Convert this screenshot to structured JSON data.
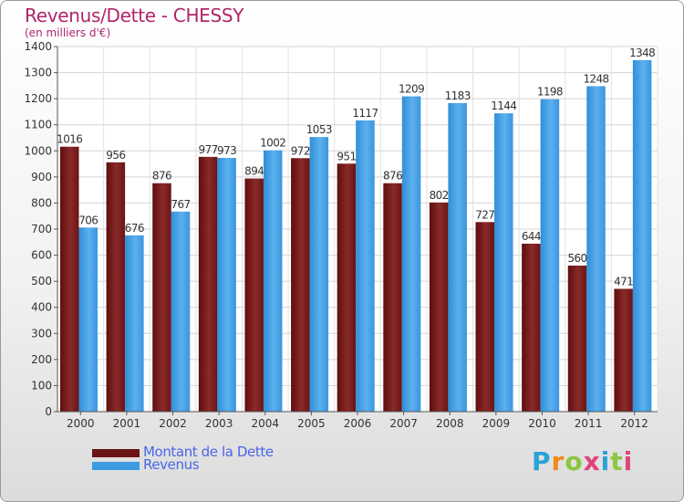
{
  "header": {
    "title": "Revenus/Dette - CHESSY",
    "subtitle": "(en milliers d'€)"
  },
  "colors": {
    "title": "#b0246a",
    "debt_bar": "#7a1a1a",
    "revenue_bar": "#3d9be3",
    "legend_text": "#4a66e8"
  },
  "legend": {
    "debt_label": "Montant de la Dette",
    "revenue_label": "Revenus"
  },
  "logo": {
    "text": "Proxiti"
  },
  "chart_data": {
    "type": "bar",
    "title": "Revenus/Dette - CHESSY",
    "subtitle": "(en milliers d'€)",
    "categories": [
      "2000",
      "2001",
      "2002",
      "2003",
      "2004",
      "2005",
      "2006",
      "2007",
      "2008",
      "2009",
      "2010",
      "2011",
      "2012"
    ],
    "series": [
      {
        "name": "Montant de la Dette",
        "values": [
          1016,
          956,
          876,
          977,
          894,
          972,
          951,
          876,
          802,
          727,
          644,
          560,
          471
        ]
      },
      {
        "name": "Revenus",
        "values": [
          706,
          676,
          767,
          973,
          1002,
          1053,
          1117,
          1209,
          1183,
          1144,
          1198,
          1248,
          1348
        ]
      }
    ],
    "ylim": [
      0,
      1400
    ],
    "yticks": [
      0,
      100,
      200,
      300,
      400,
      500,
      600,
      700,
      800,
      900,
      1000,
      1100,
      1200,
      1300,
      1400
    ],
    "grid": true,
    "legend_position": "bottom-left"
  }
}
